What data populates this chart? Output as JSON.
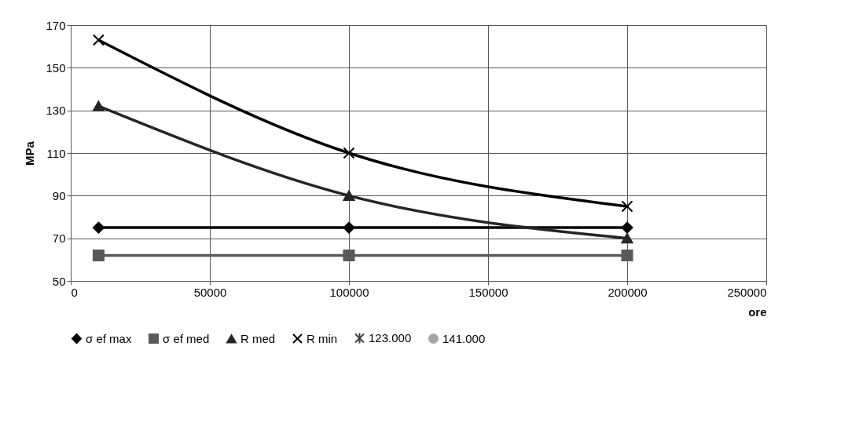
{
  "chart_data": {
    "type": "line",
    "xlabel": "ore",
    "ylabel": "MPa",
    "x": [
      10000,
      100000,
      200000
    ],
    "series": [
      {
        "name": "σ ef max",
        "color": "#000000",
        "marker": "diamond",
        "values": [
          75,
          75,
          75
        ]
      },
      {
        "name": "σ ef med",
        "color": "#595959",
        "marker": "square",
        "values": [
          62,
          62,
          62
        ]
      },
      {
        "name": "R med",
        "color": "#262626",
        "marker": "triangle",
        "values": [
          132,
          90,
          70
        ]
      },
      {
        "name": "R min",
        "color": "#000000",
        "marker": "cross",
        "values": [
          163,
          110,
          85
        ]
      },
      {
        "name": "123.000",
        "color": "#404040",
        "marker": "star",
        "values": [
          null,
          null,
          null
        ]
      },
      {
        "name": "141.000",
        "color": "#a6a6a6",
        "marker": "circle",
        "values": [
          null,
          null,
          null
        ]
      }
    ],
    "xlim": [
      0,
      250000
    ],
    "xticks": [
      0,
      50000,
      100000,
      150000,
      200000,
      250000
    ],
    "ylim": [
      50,
      170
    ],
    "yticks": [
      50,
      70,
      90,
      110,
      130,
      150,
      170
    ],
    "grid": true,
    "legend": "bottom",
    "line_style": "solid"
  }
}
